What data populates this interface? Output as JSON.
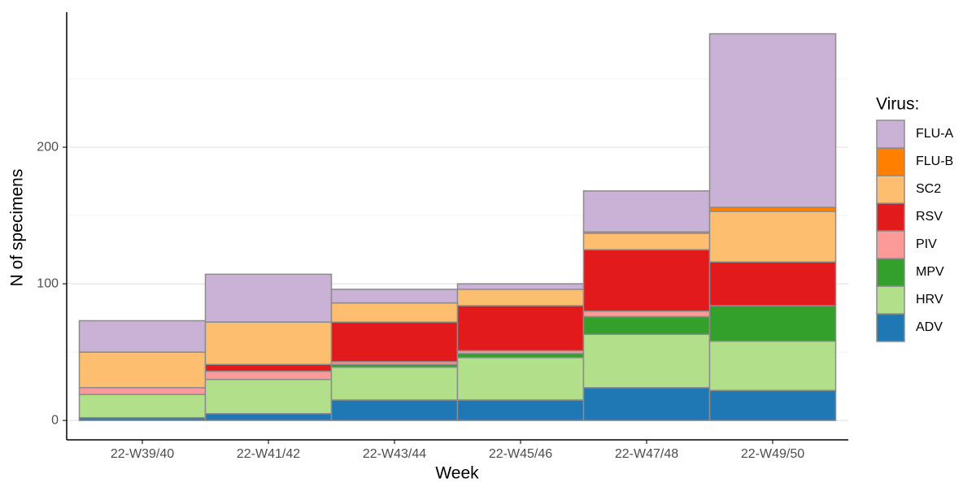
{
  "chart_data": {
    "type": "stacked-bar",
    "x_label": "Week",
    "y_label": "N of specimens",
    "legend_title": "Virus:",
    "categories": [
      "22-W39/40",
      "22-W41/42",
      "22-W43/44",
      "22-W45/46",
      "22-W47/48",
      "22-W49/50"
    ],
    "series": [
      {
        "name": "ADV",
        "color": "#1f78b4",
        "values": [
          2,
          5,
          15,
          15,
          24,
          22
        ]
      },
      {
        "name": "HRV",
        "color": "#b2df8a",
        "values": [
          17,
          25,
          24,
          31,
          39,
          36
        ]
      },
      {
        "name": "MPV",
        "color": "#33a02c",
        "values": [
          0,
          0,
          2,
          3,
          13,
          26
        ]
      },
      {
        "name": "PIV",
        "color": "#fb9a99",
        "values": [
          5,
          6,
          2,
          2,
          4,
          0
        ]
      },
      {
        "name": "RSV",
        "color": "#e31a1c",
        "values": [
          0,
          5,
          29,
          33,
          45,
          32
        ]
      },
      {
        "name": "SC2",
        "color": "#fdbf6f",
        "values": [
          26,
          31,
          14,
          12,
          12,
          37
        ]
      },
      {
        "name": "FLU-B",
        "color": "#ff7f00",
        "values": [
          0,
          0,
          0,
          0,
          1,
          3
        ]
      },
      {
        "name": "FLU-A",
        "color": "#cab2d6",
        "values": [
          23,
          35,
          10,
          4,
          30,
          127
        ]
      }
    ],
    "ylim": [
      -14.2,
      298.8
    ],
    "yticks": [
      0,
      100,
      200
    ],
    "minor_yticks": [
      50,
      150,
      250
    ],
    "grid": true,
    "legend": "right"
  }
}
